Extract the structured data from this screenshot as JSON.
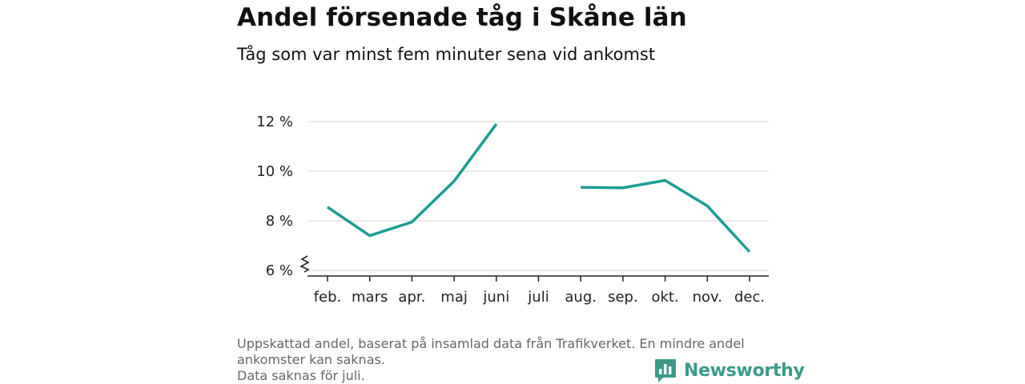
{
  "title": "Andel försenade tåg i Skåne län",
  "subtitle": "Tåg som var minst fem minuter sena vid ankomst",
  "footnote": {
    "line1": "Uppskattad andel, baserat på insamlad data från Trafikverket. En mindre andel",
    "line2": "ankomster kan saknas.",
    "line3": "Data saknas för juli."
  },
  "brand": "Newsworthy",
  "colors": {
    "line": "#1a9e92",
    "grid": "#dddddd",
    "axis": "#222222",
    "brand": "#3a9a88"
  },
  "chart_data": {
    "type": "line",
    "categories": [
      "feb.",
      "mars",
      "apr.",
      "maj",
      "juni",
      "juli",
      "aug.",
      "sep.",
      "okt.",
      "nov.",
      "dec."
    ],
    "series": [
      {
        "values": [
          8.55,
          7.4,
          7.95,
          9.6,
          11.9,
          null,
          9.35,
          9.33,
          9.63,
          8.6,
          6.75
        ]
      }
    ],
    "ylim": [
      6,
      12
    ],
    "yticks": [
      6,
      8,
      10,
      12
    ],
    "ytick_labels": [
      "6 %",
      "8 %",
      "10 %",
      "12 %"
    ],
    "xlabel": "",
    "ylabel": "",
    "grid": true,
    "axis_break": true
  }
}
